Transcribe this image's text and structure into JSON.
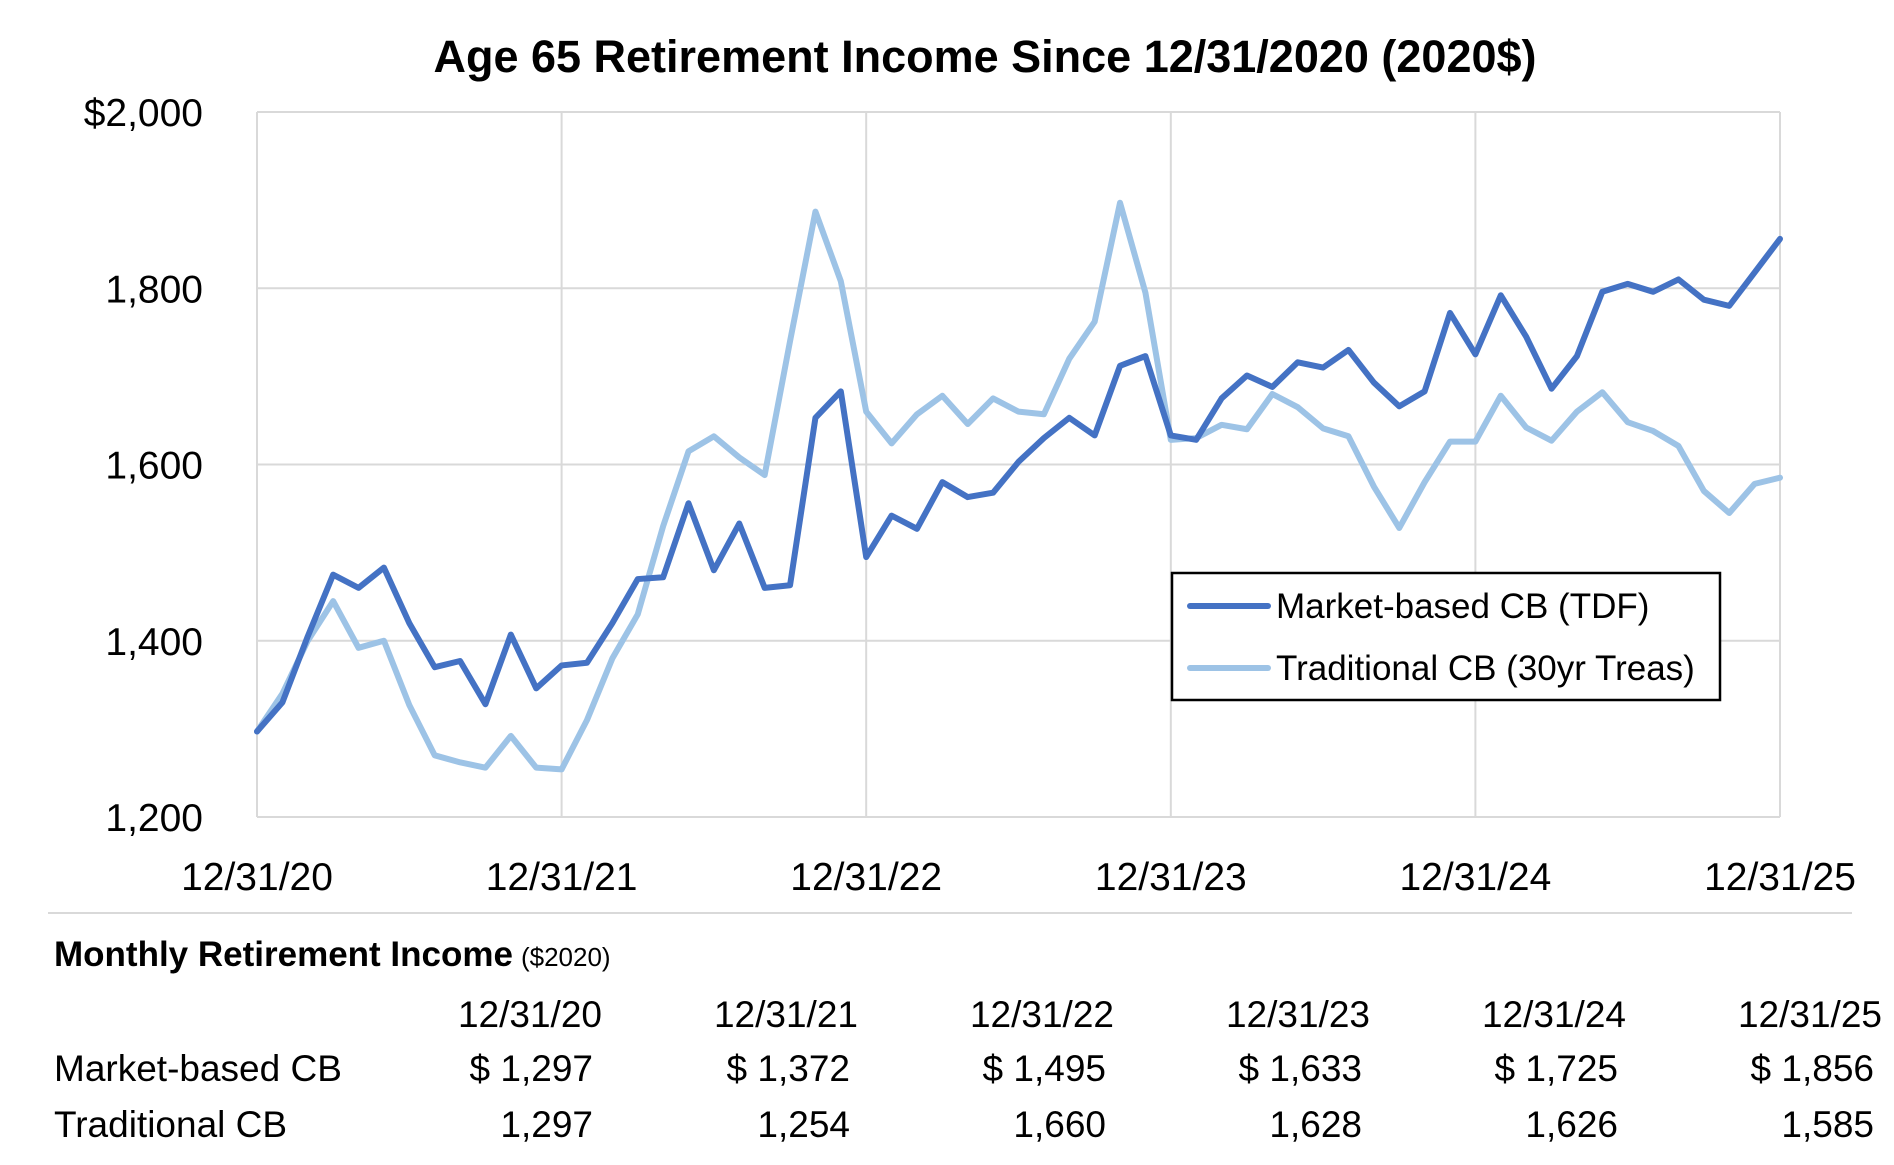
{
  "chart_data": {
    "type": "line",
    "title": "Age 65 Retirement Income Since 12/31/2020 (2020$)",
    "xlabel": "",
    "ylabel": "",
    "ylim": [
      1200,
      2000
    ],
    "y_ticks": [
      "$2,000",
      "1,800",
      "1,600",
      "1,400",
      "1,200"
    ],
    "y_tick_values": [
      2000,
      1800,
      1600,
      1400,
      1200
    ],
    "x_tick_labels": [
      "12/31/20",
      "12/31/21",
      "12/31/22",
      "12/31/23",
      "12/31/24",
      "12/31/25"
    ],
    "x_tick_months": [
      0,
      12,
      24,
      36,
      48,
      60
    ],
    "x_range_months": [
      0,
      60
    ],
    "grid": true,
    "legend_placement": "center-right",
    "series": [
      {
        "name": "Market-based CB (TDF)",
        "color": "#4472C4",
        "values": [
          1297,
          1330,
          1405,
          1475,
          1460,
          1483,
          1420,
          1370,
          1377,
          1328,
          1407,
          1346,
          1372,
          1375,
          1420,
          1470,
          1472,
          1556,
          1480,
          1533,
          1460,
          1463,
          1653,
          1683,
          1495,
          1542,
          1527,
          1580,
          1563,
          1568,
          1603,
          1630,
          1653,
          1633,
          1712,
          1723,
          1633,
          1628,
          1675,
          1701,
          1688,
          1716,
          1710,
          1730,
          1693,
          1666,
          1683,
          1772,
          1725,
          1792,
          1745,
          1686,
          1723,
          1796,
          1805,
          1796,
          1810,
          1787,
          1780,
          1818,
          1856
        ]
      },
      {
        "name": "Traditional CB (30yr Treas)",
        "color": "#9DC3E6",
        "values": [
          1297,
          1340,
          1400,
          1445,
          1392,
          1400,
          1327,
          1270,
          1262,
          1256,
          1292,
          1256,
          1254,
          1310,
          1380,
          1430,
          1530,
          1615,
          1632,
          1608,
          1588,
          1740,
          1887,
          1808,
          1660,
          1624,
          1657,
          1678,
          1646,
          1675,
          1660,
          1657,
          1720,
          1762,
          1897,
          1795,
          1628,
          1630,
          1645,
          1640,
          1680,
          1665,
          1641,
          1632,
          1575,
          1528,
          1580,
          1626,
          1626,
          1678,
          1642,
          1627,
          1660,
          1682,
          1648,
          1638,
          1621,
          1570,
          1545,
          1578,
          1585
        ]
      }
    ]
  },
  "table": {
    "heading": "Monthly Retirement Income",
    "heading_unit": "($2020)",
    "dates": [
      "12/31/20",
      "12/31/21",
      "12/31/22",
      "12/31/23",
      "12/31/24",
      "12/31/25"
    ],
    "rows": [
      {
        "label": "Market-based CB",
        "values": [
          "$ 1,297",
          "$ 1,372",
          "$ 1,495",
          "$ 1,633",
          "$ 1,725",
          "$ 1,856"
        ]
      },
      {
        "label": "Traditional CB",
        "values": [
          "1,297",
          "1,254",
          "1,660",
          "1,628",
          "1,626",
          "1,585"
        ]
      }
    ]
  }
}
